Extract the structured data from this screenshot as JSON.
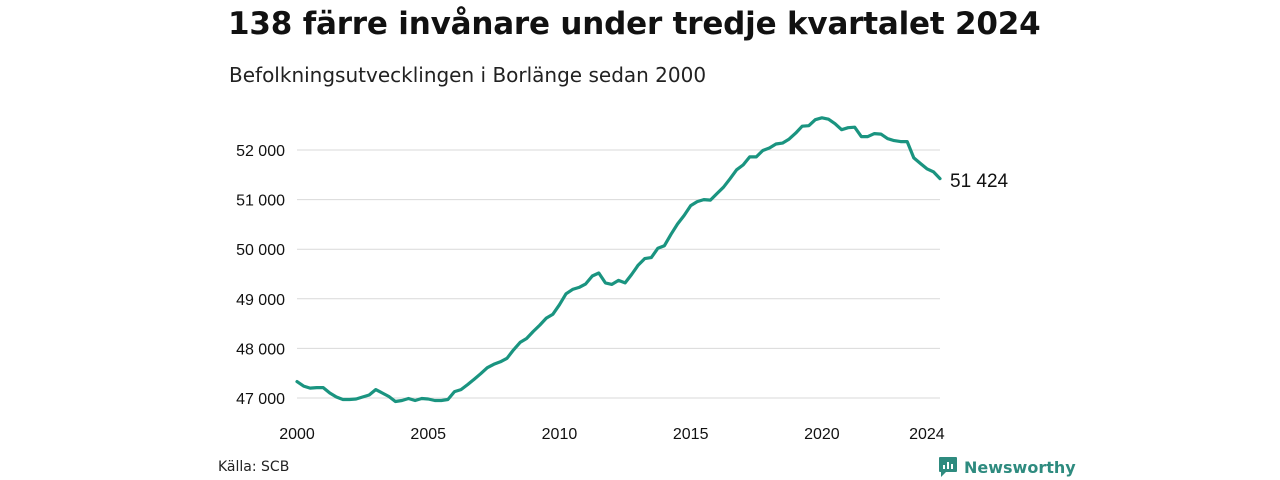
{
  "title": "138 färre invånare under tredje kvartalet 2024",
  "subtitle": "Befolkningsutvecklingen i Borlänge sedan 2000",
  "source": "Källa: SCB",
  "brand": {
    "name": "Newsworthy",
    "icon": "newsworthy-logo-icon",
    "color": "#2e8b7f"
  },
  "colors": {
    "line": "#1a9480",
    "grid": "#d9d9d9"
  },
  "chart_data": {
    "type": "line",
    "title": "138 färre invånare under tredje kvartalet 2024",
    "subtitle": "Befolkningsutvecklingen i Borlänge sedan 2000",
    "xlabel": "",
    "ylabel": "",
    "xlim": [
      2000,
      2024.5
    ],
    "ylim": [
      46850,
      52750
    ],
    "x_ticks": [
      2000,
      2005,
      2010,
      2015,
      2020,
      2024
    ],
    "y_ticks": [
      47000,
      48000,
      49000,
      50000,
      51000,
      52000
    ],
    "y_tick_labels": [
      "47 000",
      "48 000",
      "49 000",
      "50 000",
      "51 000",
      "52 000"
    ],
    "grid": "horizontal",
    "legend": "none",
    "last_value_label": "51 424",
    "series": [
      {
        "x": [
          2000.0,
          2000.25,
          2000.5,
          2000.75,
          2001.0,
          2001.25,
          2001.5,
          2001.75,
          2002.0,
          2002.25,
          2002.5,
          2002.75,
          2003.0,
          2003.25,
          2003.5,
          2003.75,
          2004.0,
          2004.25,
          2004.5,
          2004.75,
          2005.0,
          2005.25,
          2005.5,
          2005.75,
          2006.0,
          2006.25,
          2006.5,
          2006.75,
          2007.0,
          2007.25,
          2007.5,
          2007.75,
          2008.0,
          2008.25,
          2008.5,
          2008.75,
          2009.0,
          2009.25,
          2009.5,
          2009.75,
          2010.0,
          2010.25,
          2010.5,
          2010.75,
          2011.0,
          2011.25,
          2011.5,
          2011.75,
          2012.0,
          2012.25,
          2012.5,
          2012.75,
          2013.0,
          2013.25,
          2013.5,
          2013.75,
          2014.0,
          2014.25,
          2014.5,
          2014.75,
          2015.0,
          2015.25,
          2015.5,
          2015.75,
          2016.0,
          2016.25,
          2016.5,
          2016.75,
          2017.0,
          2017.25,
          2017.5,
          2017.75,
          2018.0,
          2018.25,
          2018.5,
          2018.75,
          2019.0,
          2019.25,
          2019.5,
          2019.75,
          2020.0,
          2020.25,
          2020.5,
          2020.75,
          2021.0,
          2021.25,
          2021.5,
          2021.75,
          2022.0,
          2022.25,
          2022.5,
          2022.75,
          2023.0,
          2023.25,
          2023.5,
          2023.75,
          2024.0,
          2024.25,
          2024.5
        ],
        "values": [
          47330,
          47240,
          47200,
          47210,
          47210,
          47100,
          47020,
          46970,
          46970,
          46980,
          47020,
          47060,
          47170,
          47100,
          47030,
          46930,
          46950,
          46990,
          46950,
          46990,
          46980,
          46950,
          46950,
          46970,
          47130,
          47170,
          47270,
          47380,
          47490,
          47610,
          47680,
          47730,
          47800,
          47970,
          48120,
          48200,
          48340,
          48470,
          48610,
          48690,
          48880,
          49100,
          49190,
          49230,
          49300,
          49460,
          49520,
          49320,
          49290,
          49370,
          49320,
          49490,
          49680,
          49810,
          49830,
          50020,
          50070,
          50300,
          50510,
          50680,
          50880,
          50960,
          51000,
          50990,
          51120,
          51250,
          51420,
          51600,
          51700,
          51860,
          51860,
          51990,
          52040,
          52120,
          52140,
          52220,
          52340,
          52480,
          52490,
          52610,
          52650,
          52620,
          52530,
          52410,
          52450,
          52460,
          52270,
          52270,
          52330,
          52320,
          52230,
          52190,
          52170,
          52170,
          51840,
          51730,
          51620,
          51560,
          51424
        ]
      }
    ]
  }
}
